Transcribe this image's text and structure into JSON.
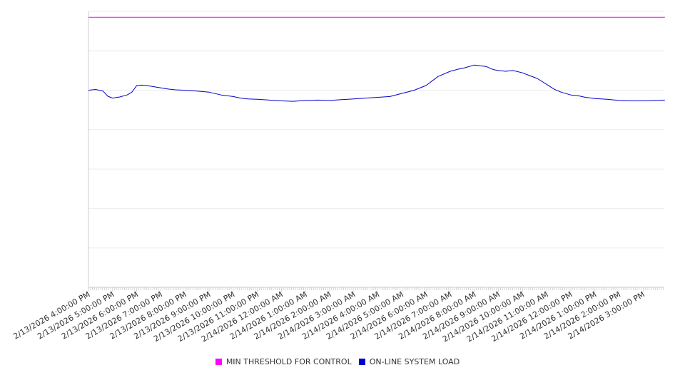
{
  "chart_data": {
    "type": "line",
    "title": "",
    "xlabel": "",
    "ylabel": "",
    "ylim": [
      0,
      7
    ],
    "grid": true,
    "legend_position": "bottom",
    "x_tick_labels": [
      "2/13/2026 4:00:00 PM",
      "2/13/2026 5:00:00 PM",
      "2/13/2026 6:00:00 PM",
      "2/13/2026 7:00:00 PM",
      "2/13/2026 8:00:00 PM",
      "2/13/2026 9:00:00 PM",
      "2/13/2026 10:00:00 PM",
      "2/13/2026 11:00:00 PM",
      "2/14/2026 12:00:00 AM",
      "2/14/2026 1:00:00 AM",
      "2/14/2026 2:00:00 AM",
      "2/14/2026 3:00:00 AM",
      "2/14/2026 4:00:00 AM",
      "2/14/2026 5:00:00 AM",
      "2/14/2026 6:00:00 AM",
      "2/14/2026 7:00:00 AM",
      "2/14/2026 8:00:00 AM",
      "2/14/2026 9:00:00 AM",
      "2/14/2026 10:00:00 AM",
      "2/14/2026 11:00:00 AM",
      "2/14/2026 12:00:00 PM",
      "2/14/2026 1:00:00 PM",
      "2/14/2026 2:00:00 PM",
      "2/14/2026 3:00:00 PM"
    ],
    "series": [
      {
        "name": "MIN THRESHOLD FOR CONTROL",
        "color": "#ff00ff",
        "x": [
          0,
          23.9
        ],
        "values": [
          6.85,
          6.85
        ]
      },
      {
        "name": "ON-LINE SYSTEM LOAD",
        "color": "#0000cc",
        "x": [
          0,
          0.3,
          0.6,
          0.8,
          1.0,
          1.3,
          1.6,
          1.8,
          2.0,
          2.2,
          2.4,
          2.6,
          2.8,
          3.0,
          3.3,
          3.6,
          4.0,
          4.5,
          5.0,
          5.5,
          6.0,
          6.3,
          6.6,
          7.0,
          7.5,
          8.0,
          8.5,
          9.0,
          9.5,
          10.0,
          10.5,
          11.0,
          11.5,
          12.0,
          12.5,
          13.0,
          13.5,
          14.0,
          14.5,
          15.0,
          15.3,
          15.6,
          16.0,
          16.5,
          16.8,
          17.0,
          17.3,
          17.6,
          18.0,
          18.3,
          18.6,
          19.0,
          19.3,
          19.6,
          20.0,
          20.3,
          20.6,
          21.0,
          21.5,
          22.0,
          22.5,
          23.0,
          23.5,
          23.9
        ],
        "values": [
          5.0,
          5.02,
          4.98,
          4.85,
          4.8,
          4.83,
          4.88,
          4.95,
          5.12,
          5.13,
          5.12,
          5.1,
          5.08,
          5.06,
          5.03,
          5.01,
          5.0,
          4.98,
          4.95,
          4.88,
          4.84,
          4.8,
          4.78,
          4.77,
          4.75,
          4.73,
          4.72,
          4.74,
          4.75,
          4.74,
          4.76,
          4.78,
          4.8,
          4.82,
          4.84,
          4.92,
          5.0,
          5.12,
          5.35,
          5.48,
          5.53,
          5.57,
          5.64,
          5.6,
          5.52,
          5.5,
          5.48,
          5.5,
          5.44,
          5.37,
          5.3,
          5.15,
          5.03,
          4.95,
          4.88,
          4.86,
          4.82,
          4.79,
          4.77,
          4.74,
          4.73,
          4.73,
          4.74,
          4.75
        ]
      }
    ]
  }
}
